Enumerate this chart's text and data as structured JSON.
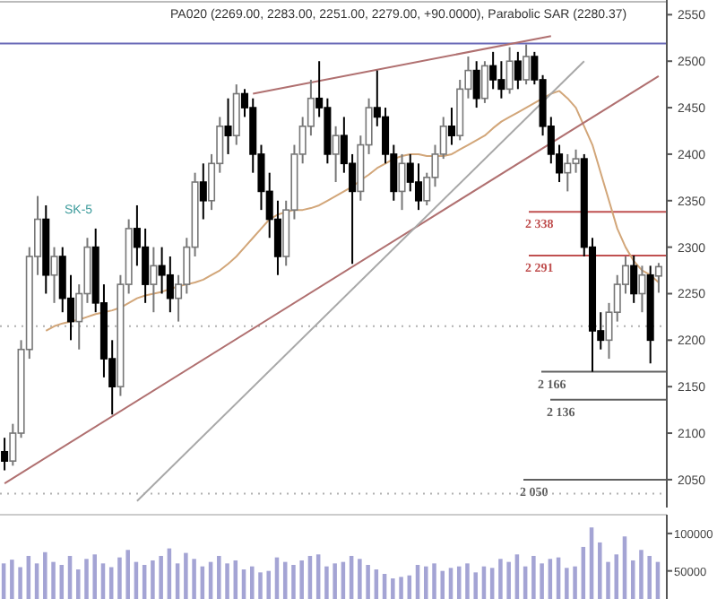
{
  "chart_data": [
    {
      "type": "candlestick",
      "title": "PA020 (2269.00, 2283.00, 2251.00, 2279.00, +90.0000), Parabolic SAR (2280.37)",
      "categories": [
        null,
        null,
        null,
        null,
        null,
        null,
        null,
        null,
        null,
        null,
        null,
        null,
        null,
        null,
        null,
        null,
        null,
        null,
        null,
        null,
        null,
        null,
        null,
        null,
        null,
        null,
        null,
        null,
        null,
        null,
        null,
        null,
        null,
        null,
        null,
        null,
        null,
        null,
        null,
        null,
        null,
        null,
        null,
        null,
        null,
        null,
        null,
        null,
        null,
        null,
        null,
        null,
        null,
        null,
        null,
        null,
        null,
        null,
        null,
        null,
        null,
        null,
        null,
        null,
        null,
        null,
        null,
        null,
        null,
        null,
        null,
        null,
        null,
        null,
        null,
        null,
        null,
        null,
        null,
        null
      ],
      "ohlc": [
        [
          2080,
          2095,
          2060,
          2070
        ],
        [
          2070,
          2110,
          2065,
          2100
        ],
        [
          2100,
          2200,
          2095,
          2190
        ],
        [
          2190,
          2300,
          2180,
          2290
        ],
        [
          2290,
          2355,
          2270,
          2330
        ],
        [
          2330,
          2345,
          2250,
          2270
        ],
        [
          2270,
          2300,
          2240,
          2290
        ],
        [
          2290,
          2300,
          2230,
          2245
        ],
        [
          2245,
          2270,
          2200,
          2220
        ],
        [
          2220,
          2260,
          2190,
          2250
        ],
        [
          2250,
          2310,
          2240,
          2300
        ],
        [
          2300,
          2320,
          2230,
          2240
        ],
        [
          2240,
          2260,
          2160,
          2180
        ],
        [
          2180,
          2200,
          2120,
          2150
        ],
        [
          2150,
          2270,
          2140,
          2260
        ],
        [
          2260,
          2330,
          2250,
          2320
        ],
        [
          2320,
          2345,
          2280,
          2300
        ],
        [
          2300,
          2320,
          2240,
          2260
        ],
        [
          2260,
          2300,
          2230,
          2280
        ],
        [
          2280,
          2300,
          2250,
          2270
        ],
        [
          2270,
          2290,
          2230,
          2245
        ],
        [
          2245,
          2270,
          2220,
          2260
        ],
        [
          2260,
          2310,
          2250,
          2300
        ],
        [
          2300,
          2380,
          2290,
          2370
        ],
        [
          2370,
          2390,
          2330,
          2350
        ],
        [
          2350,
          2400,
          2340,
          2390
        ],
        [
          2390,
          2440,
          2380,
          2430
        ],
        [
          2430,
          2460,
          2400,
          2420
        ],
        [
          2420,
          2475,
          2410,
          2465
        ],
        [
          2465,
          2470,
          2440,
          2450
        ],
        [
          2450,
          2460,
          2380,
          2400
        ],
        [
          2400,
          2410,
          2340,
          2360
        ],
        [
          2360,
          2380,
          2310,
          2330
        ],
        [
          2330,
          2350,
          2270,
          2290
        ],
        [
          2290,
          2350,
          2280,
          2340
        ],
        [
          2340,
          2410,
          2330,
          2400
        ],
        [
          2400,
          2440,
          2390,
          2430
        ],
        [
          2430,
          2480,
          2420,
          2460
        ],
        [
          2460,
          2500,
          2440,
          2450
        ],
        [
          2450,
          2460,
          2390,
          2400
        ],
        [
          2400,
          2430,
          2370,
          2420
        ],
        [
          2420,
          2440,
          2380,
          2390
        ],
        [
          2390,
          2400,
          2282,
          2360
        ],
        [
          2360,
          2420,
          2350,
          2410
        ],
        [
          2410,
          2460,
          2400,
          2450
        ],
        [
          2450,
          2490,
          2430,
          2440
        ],
        [
          2440,
          2450,
          2390,
          2400
        ],
        [
          2400,
          2410,
          2350,
          2360
        ],
        [
          2360,
          2400,
          2340,
          2390
        ],
        [
          2390,
          2400,
          2360,
          2370
        ],
        [
          2370,
          2390,
          2340,
          2350
        ],
        [
          2350,
          2380,
          2345,
          2375
        ],
        [
          2375,
          2410,
          2365,
          2400
        ],
        [
          2400,
          2440,
          2395,
          2430
        ],
        [
          2430,
          2450,
          2410,
          2420
        ],
        [
          2420,
          2480,
          2415,
          2470
        ],
        [
          2470,
          2505,
          2460,
          2490
        ],
        [
          2490,
          2500,
          2450,
          2460
        ],
        [
          2460,
          2500,
          2455,
          2495
        ],
        [
          2495,
          2510,
          2470,
          2480
        ],
        [
          2480,
          2500,
          2460,
          2470
        ],
        [
          2470,
          2515,
          2465,
          2500
        ],
        [
          2500,
          2510,
          2470,
          2480
        ],
        [
          2480,
          2518,
          2475,
          2505
        ],
        [
          2505,
          2510,
          2475,
          2480
        ],
        [
          2480,
          2485,
          2420,
          2430
        ],
        [
          2430,
          2440,
          2390,
          2400
        ],
        [
          2400,
          2410,
          2370,
          2380
        ],
        [
          2380,
          2400,
          2360,
          2390
        ],
        [
          2390,
          2405,
          2380,
          2395
        ],
        [
          2395,
          2400,
          2290,
          2300
        ],
        [
          2300,
          2310,
          2166,
          2210
        ],
        [
          2210,
          2230,
          2190,
          2200
        ],
        [
          2200,
          2240,
          2180,
          2230
        ],
        [
          2230,
          2270,
          2220,
          2260
        ],
        [
          2260,
          2290,
          2250,
          2280
        ],
        [
          2280,
          2291,
          2240,
          2250
        ],
        [
          2250,
          2280,
          2230,
          2270
        ],
        [
          2270,
          2280,
          2175,
          2200
        ],
        [
          2269,
          2283,
          2251,
          2279
        ]
      ],
      "series": [
        {
          "type": "line",
          "color": "#d2a679",
          "values": [
            null,
            null,
            null,
            null,
            null,
            2210,
            2215,
            2218,
            2220,
            2222,
            2225,
            2228,
            2230,
            2232,
            2235,
            2240,
            2245,
            2248,
            2250,
            2252,
            2255,
            2258,
            2260,
            2262,
            2265,
            2270,
            2275,
            2282,
            2290,
            2300,
            2310,
            2320,
            2330,
            2335,
            2338,
            2340,
            2340,
            2342,
            2345,
            2350,
            2355,
            2360,
            2365,
            2372,
            2378,
            2385,
            2390,
            2395,
            2398,
            2400,
            2400,
            2398,
            2398,
            2398,
            2400,
            2405,
            2410,
            2415,
            2420,
            2428,
            2435,
            2440,
            2445,
            2450,
            2455,
            2460,
            2465,
            2468,
            2460,
            2450,
            2430,
            2410,
            2380,
            2350,
            2320,
            2300,
            2285,
            2275,
            2270,
            2262
          ]
        },
        {
          "type": "line",
          "color": "#b07070",
          "values": [
            2046,
            null,
            null,
            null,
            null,
            null,
            null,
            null,
            null,
            null,
            null,
            null,
            null,
            null,
            null,
            null,
            null,
            null,
            null,
            null,
            null,
            null,
            null,
            null,
            null,
            null,
            null,
            null,
            null,
            null,
            null,
            null,
            null,
            null,
            null,
            null,
            null,
            null,
            null,
            null,
            null,
            null,
            null,
            null,
            null,
            null,
            null,
            null,
            null,
            null,
            null,
            null,
            null,
            null,
            null,
            null,
            null,
            null,
            null,
            null,
            null,
            null,
            null,
            null,
            null,
            null,
            null,
            null,
            null,
            null,
            null,
            null,
            null,
            null,
            null,
            null,
            null,
            null,
            null,
            2484
          ]
        },
        {
          "type": "line",
          "color": "#b07070",
          "values": [
            null,
            null,
            null,
            null,
            null,
            null,
            null,
            null,
            null,
            null,
            null,
            null,
            null,
            null,
            null,
            null,
            null,
            null,
            null,
            null,
            null,
            null,
            null,
            null,
            null,
            null,
            null,
            null,
            null,
            null,
            2465,
            null,
            null,
            null,
            null,
            null,
            null,
            null,
            null,
            null,
            null,
            null,
            null,
            null,
            null,
            null,
            null,
            null,
            null,
            null,
            null,
            null,
            null,
            null,
            null,
            null,
            null,
            null,
            null,
            null,
            null,
            null,
            null,
            null,
            null,
            null,
            2527,
            null,
            null,
            null,
            null,
            null,
            null,
            null,
            null,
            null,
            null,
            null,
            null,
            null
          ]
        },
        {
          "type": "line",
          "color": "#a8a8a8",
          "values": [
            null,
            null,
            null,
            null,
            null,
            null,
            null,
            null,
            null,
            null,
            null,
            null,
            null,
            null,
            null,
            null,
            2027,
            null,
            null,
            null,
            null,
            null,
            null,
            null,
            null,
            null,
            null,
            null,
            null,
            null,
            null,
            null,
            null,
            null,
            null,
            null,
            null,
            null,
            null,
            null,
            null,
            null,
            null,
            null,
            null,
            null,
            null,
            null,
            null,
            null,
            null,
            null,
            null,
            null,
            null,
            null,
            null,
            null,
            null,
            null,
            null,
            null,
            null,
            null,
            null,
            null,
            null,
            null,
            null,
            null,
            2500,
            null,
            null,
            null,
            null,
            null,
            null,
            null,
            null,
            null
          ]
        }
      ],
      "ylim": [
        2020,
        2560
      ],
      "yticks": [
        2050,
        2100,
        2150,
        2200,
        2250,
        2300,
        2350,
        2400,
        2450,
        2500,
        2550
      ],
      "ref_lines": [
        {
          "axis": "y",
          "value": 2519,
          "color": "#6a6ab8",
          "line_style": "solid"
        },
        {
          "axis": "y",
          "value": 2338,
          "label": "2 338",
          "color": "#c05050",
          "line_style": "solid"
        },
        {
          "axis": "y",
          "value": 2291,
          "label": "2 291",
          "color": "#c05050",
          "line_style": "solid"
        },
        {
          "axis": "y",
          "value": 2166,
          "label": "2 166",
          "color": "#606060",
          "line_style": "solid"
        },
        {
          "axis": "y",
          "value": 2136,
          "label": "2 136",
          "color": "#606060",
          "line_style": "solid"
        },
        {
          "axis": "y",
          "value": 2050,
          "label": "2 050",
          "color": "#606060",
          "line_style": "solid"
        },
        {
          "axis": "y",
          "value": 2215,
          "color": "#b0b0b0",
          "line_style": "dotted"
        },
        {
          "axis": "y",
          "value": 2035,
          "color": "#b0b0b0",
          "line_style": "dotted"
        }
      ],
      "annotations": [
        "SK-5"
      ]
    },
    {
      "type": "bar",
      "color": "#a4a4d4",
      "categories": [
        null,
        null,
        null,
        null,
        null,
        null,
        null,
        null,
        null,
        null,
        null,
        null,
        null,
        null,
        null,
        null,
        null,
        null,
        null,
        null,
        null,
        null,
        null,
        null,
        null,
        null,
        null,
        null,
        null,
        null,
        null,
        null,
        null,
        null,
        null,
        null,
        null,
        null,
        null,
        null,
        null,
        null,
        null,
        null,
        null,
        null,
        null,
        null,
        null,
        null,
        null,
        null,
        null,
        null,
        null,
        null,
        null,
        null,
        null,
        null,
        null,
        null,
        null,
        null,
        null,
        null,
        null,
        null,
        null,
        null,
        null,
        null,
        null,
        null,
        null,
        null,
        null,
        null,
        null,
        null
      ],
      "values": [
        60000,
        65000,
        55000,
        70000,
        60000,
        75000,
        62000,
        58000,
        70000,
        52000,
        66000,
        72000,
        60000,
        55000,
        68000,
        78000,
        62000,
        58000,
        64000,
        70000,
        80000,
        60000,
        74000,
        66000,
        56000,
        62000,
        70000,
        60000,
        64000,
        52000,
        56000,
        48000,
        50000,
        68000,
        62000,
        58000,
        64000,
        70000,
        72000,
        56000,
        60000,
        62000,
        70000,
        66000,
        58000,
        52000,
        46000,
        40000,
        42000,
        44000,
        58000,
        56000,
        60000,
        50000,
        54000,
        56000,
        60000,
        48000,
        56000,
        54000,
        66000,
        62000,
        72000,
        56000,
        70000,
        60000,
        66000,
        68000,
        54000,
        56000,
        82000,
        108000,
        88000,
        62000,
        72000,
        96000,
        64000,
        78000,
        70000,
        62000
      ],
      "ylim": [
        12500,
        125000
      ],
      "yticks": [
        50000,
        100000
      ]
    }
  ]
}
